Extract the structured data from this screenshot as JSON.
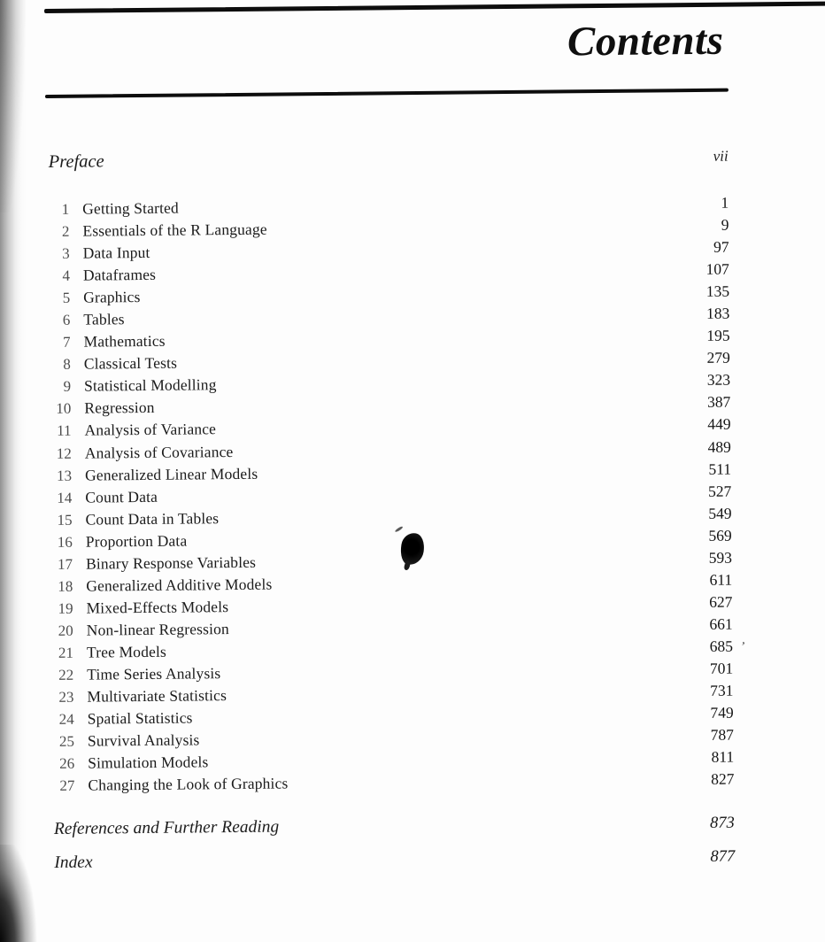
{
  "document": {
    "title": "Contents",
    "front_matter": {
      "label": "Preface",
      "page": "vii"
    },
    "chapters": [
      {
        "num": "1",
        "title": "Getting Started",
        "page": "1"
      },
      {
        "num": "2",
        "title": "Essentials of the R Language",
        "page": "9"
      },
      {
        "num": "3",
        "title": "Data Input",
        "page": "97"
      },
      {
        "num": "4",
        "title": "Dataframes",
        "page": "107"
      },
      {
        "num": "5",
        "title": "Graphics",
        "page": "135"
      },
      {
        "num": "6",
        "title": "Tables",
        "page": "183"
      },
      {
        "num": "7",
        "title": "Mathematics",
        "page": "195"
      },
      {
        "num": "8",
        "title": "Classical Tests",
        "page": "279"
      },
      {
        "num": "9",
        "title": "Statistical Modelling",
        "page": "323"
      },
      {
        "num": "10",
        "title": "Regression",
        "page": "387"
      },
      {
        "num": "11",
        "title": "Analysis of Variance",
        "page": "449"
      },
      {
        "num": "12",
        "title": "Analysis of Covariance",
        "page": "489"
      },
      {
        "num": "13",
        "title": "Generalized Linear Models",
        "page": "511"
      },
      {
        "num": "14",
        "title": "Count Data",
        "page": "527"
      },
      {
        "num": "15",
        "title": "Count Data in Tables",
        "page": "549"
      },
      {
        "num": "16",
        "title": "Proportion Data",
        "page": "569"
      },
      {
        "num": "17",
        "title": "Binary Response Variables",
        "page": "593"
      },
      {
        "num": "18",
        "title": "Generalized Additive Models",
        "page": "611"
      },
      {
        "num": "19",
        "title": "Mixed-Effects Models",
        "page": "627"
      },
      {
        "num": "20",
        "title": "Non-linear Regression",
        "page": "661"
      },
      {
        "num": "21",
        "title": "Tree Models",
        "page": "685",
        "stray_mark": "’"
      },
      {
        "num": "22",
        "title": "Time Series Analysis",
        "page": "701"
      },
      {
        "num": "23",
        "title": "Multivariate Statistics",
        "page": "731"
      },
      {
        "num": "24",
        "title": "Spatial Statistics",
        "page": "749"
      },
      {
        "num": "25",
        "title": "Survival Analysis",
        "page": "787"
      },
      {
        "num": "26",
        "title": "Simulation Models",
        "page": "811"
      },
      {
        "num": "27",
        "title": "Changing the Look of Graphics",
        "page": "827"
      }
    ],
    "back_matter": {
      "references": {
        "label": "References and Further Reading",
        "page": "873"
      },
      "index": {
        "label": "Index",
        "page": "877"
      }
    },
    "artifacts": {
      "ink_blot_icon": "ink-blot",
      "stray_mark_after_685": "’"
    },
    "colors": {
      "paper": "#fdfdfd",
      "ink": "#1a1a1a",
      "rule": "#0d0d0d"
    }
  }
}
